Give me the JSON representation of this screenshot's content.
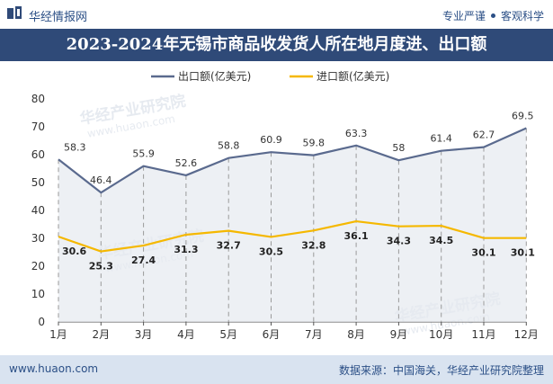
{
  "header": {
    "brand_name": "华经情报网",
    "slogan_left": "专业严谨",
    "slogan_right": "客观科学"
  },
  "title": "2023-2024年无锡市商品收发货人所在地月度进、出口额",
  "footer": {
    "website": "www.huaon.com",
    "source": "数据来源：中国海关，华经产业研究院整理"
  },
  "watermark": {
    "text": "华经产业研究院",
    "url": "www.huaon.com"
  },
  "colors": {
    "brand": "#2f4a78",
    "export_line": "#5a6a8e",
    "import_line": "#f5b800",
    "area_fill": "#e6e9f0"
  },
  "chart_data": {
    "type": "line",
    "categories": [
      "1月",
      "2月",
      "3月",
      "4月",
      "5月",
      "6月",
      "7月",
      "8月",
      "9月",
      "10月",
      "11月",
      "12月"
    ],
    "series": [
      {
        "name": "出口额(亿美元)",
        "values": [
          58.3,
          46.4,
          55.9,
          52.6,
          58.8,
          60.9,
          59.8,
          63.3,
          58,
          61.4,
          62.7,
          69.5
        ],
        "labels": [
          "58.3",
          "46.4",
          "55.9",
          "52.6",
          "58.8",
          "60.9",
          "59.8",
          "63.3",
          "58",
          "61.4",
          "62.7",
          "69.5"
        ]
      },
      {
        "name": "进口额(亿美元)",
        "values": [
          30.6,
          25.3,
          27.4,
          31.3,
          32.7,
          30.5,
          32.8,
          36.1,
          34.3,
          34.5,
          30.1,
          30.1
        ],
        "labels": [
          "30.6",
          "25.3",
          "27.4",
          "31.3",
          "32.7",
          "30.5",
          "32.8",
          "36.1",
          "34.3",
          "34.5",
          "30.1",
          "30.1"
        ]
      }
    ],
    "ylim": [
      0,
      80
    ],
    "yticks": [
      "0",
      "10",
      "20",
      "30",
      "40",
      "50",
      "60",
      "70",
      "80"
    ],
    "legend": "top-center",
    "grid": false
  }
}
